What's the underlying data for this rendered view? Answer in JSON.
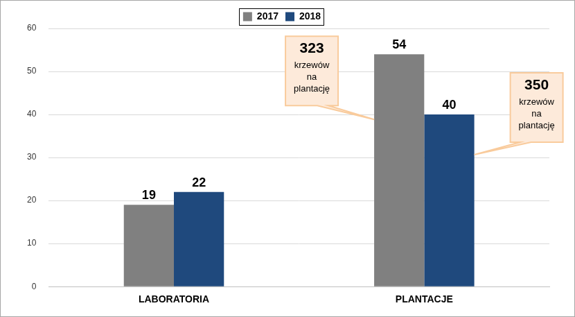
{
  "chart_data": {
    "type": "bar",
    "categories": [
      "LABORATORIA",
      "PLANTACJE"
    ],
    "series": [
      {
        "name": "2017",
        "color": "#808080",
        "values": [
          19,
          54
        ]
      },
      {
        "name": "2018",
        "color": "#1f497d",
        "values": [
          22,
          40
        ]
      }
    ],
    "ylim": [
      0,
      60
    ],
    "yticks": [
      0,
      10,
      20,
      30,
      40,
      50,
      60
    ],
    "grid": true,
    "legend": "top",
    "data_labels": true,
    "annotations": [
      {
        "series": "2017",
        "category": "PLANTACJE",
        "text": [
          "323",
          "krzewów",
          "na",
          "plantację"
        ]
      },
      {
        "series": "2018",
        "category": "PLANTACJE",
        "text": [
          "350",
          "krzewów",
          "na",
          "plantację"
        ]
      }
    ]
  }
}
